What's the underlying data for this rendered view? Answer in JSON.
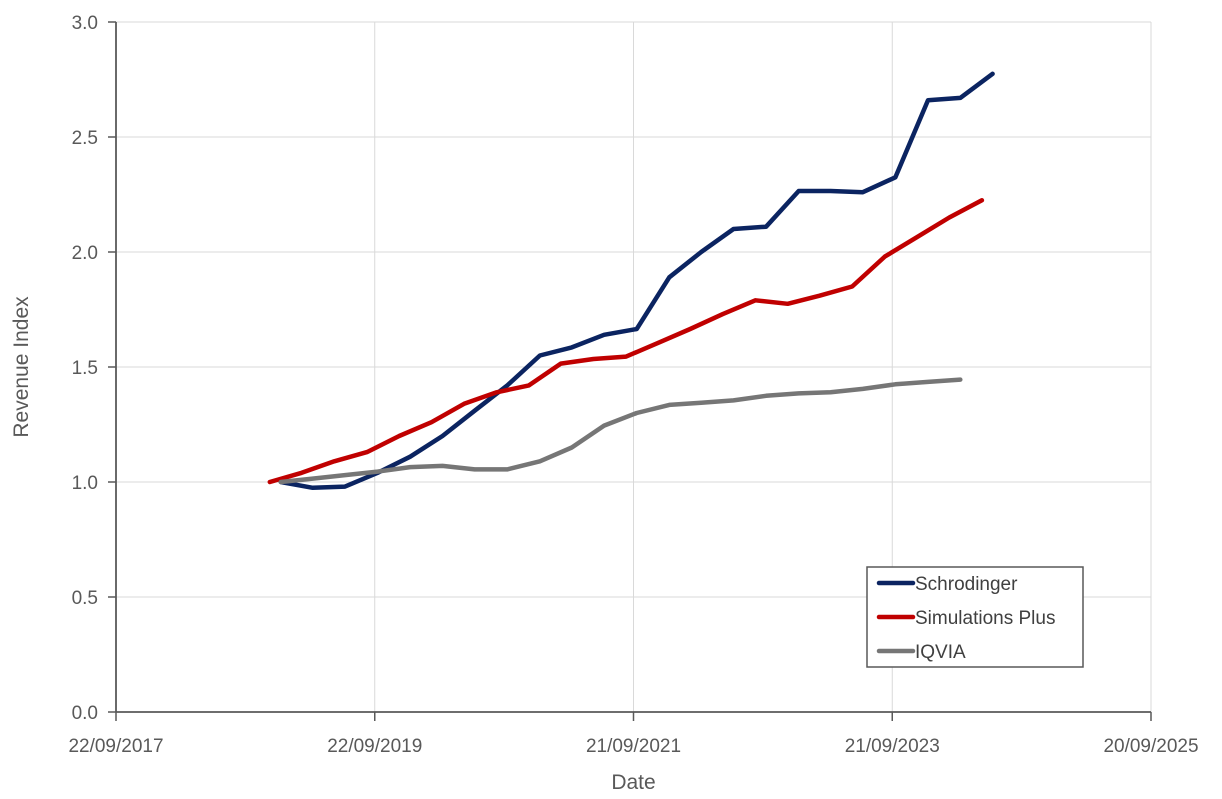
{
  "chart_data": {
    "type": "line",
    "title": "",
    "xlabel": "Date",
    "ylabel": "Revenue Index",
    "x_axis_type": "date",
    "xlim": [
      "2017-09-22",
      "2025-09-20"
    ],
    "ylim": [
      0.0,
      3.0
    ],
    "x_ticks": [
      "22/09/2017",
      "22/09/2019",
      "21/09/2021",
      "21/09/2023",
      "20/09/2025"
    ],
    "x_tick_dates": [
      "2017-09-22",
      "2019-09-22",
      "2021-09-21",
      "2023-09-21",
      "2025-09-20"
    ],
    "y_ticks": [
      "0.0",
      "0.5",
      "1.0",
      "1.5",
      "2.0",
      "2.5",
      "3.0"
    ],
    "y_tick_values": [
      0.0,
      0.5,
      1.0,
      1.5,
      2.0,
      2.5,
      3.0
    ],
    "grid": true,
    "legend_position": "bottom-right",
    "series": [
      {
        "name": "Schrodinger",
        "color": "#0b2461",
        "points": [
          [
            "2018-12-31",
            1.0
          ],
          [
            "2019-03-31",
            0.975
          ],
          [
            "2019-06-30",
            0.98
          ],
          [
            "2019-09-30",
            1.04
          ],
          [
            "2019-12-31",
            1.11
          ],
          [
            "2020-03-31",
            1.2
          ],
          [
            "2020-06-30",
            1.31
          ],
          [
            "2020-09-30",
            1.42
          ],
          [
            "2020-12-31",
            1.55
          ],
          [
            "2021-03-31",
            1.585
          ],
          [
            "2021-06-30",
            1.64
          ],
          [
            "2021-09-30",
            1.665
          ],
          [
            "2021-12-31",
            1.89
          ],
          [
            "2022-03-31",
            2.0
          ],
          [
            "2022-06-30",
            2.1
          ],
          [
            "2022-09-30",
            2.11
          ],
          [
            "2022-12-31",
            2.265
          ],
          [
            "2023-03-31",
            2.265
          ],
          [
            "2023-06-30",
            2.26
          ],
          [
            "2023-09-30",
            2.325
          ],
          [
            "2023-12-31",
            2.66
          ],
          [
            "2024-03-31",
            2.67
          ],
          [
            "2024-06-30",
            2.775
          ]
        ]
      },
      {
        "name": "Simulations Plus",
        "color": "#c00000",
        "points": [
          [
            "2018-11-30",
            1.0
          ],
          [
            "2019-02-28",
            1.04
          ],
          [
            "2019-05-31",
            1.09
          ],
          [
            "2019-08-31",
            1.13
          ],
          [
            "2019-11-30",
            1.2
          ],
          [
            "2020-02-29",
            1.26
          ],
          [
            "2020-05-31",
            1.34
          ],
          [
            "2020-08-31",
            1.39
          ],
          [
            "2020-11-30",
            1.42
          ],
          [
            "2021-02-28",
            1.515
          ],
          [
            "2021-05-31",
            1.535
          ],
          [
            "2021-08-31",
            1.545
          ],
          [
            "2021-11-30",
            1.605
          ],
          [
            "2022-02-28",
            1.665
          ],
          [
            "2022-05-31",
            1.73
          ],
          [
            "2022-08-31",
            1.79
          ],
          [
            "2022-11-30",
            1.775
          ],
          [
            "2023-02-28",
            1.81
          ],
          [
            "2023-05-31",
            1.85
          ],
          [
            "2023-08-31",
            1.98
          ],
          [
            "2023-11-30",
            2.065
          ],
          [
            "2024-02-29",
            2.15
          ],
          [
            "2024-05-31",
            2.225
          ]
        ]
      },
      {
        "name": "IQVIA",
        "color": "#767676",
        "points": [
          [
            "2018-12-31",
            1.0
          ],
          [
            "2019-03-31",
            1.015
          ],
          [
            "2019-06-30",
            1.03
          ],
          [
            "2019-09-30",
            1.045
          ],
          [
            "2019-12-31",
            1.065
          ],
          [
            "2020-03-31",
            1.07
          ],
          [
            "2020-06-30",
            1.055
          ],
          [
            "2020-09-30",
            1.055
          ],
          [
            "2020-12-31",
            1.09
          ],
          [
            "2021-03-31",
            1.15
          ],
          [
            "2021-06-30",
            1.245
          ],
          [
            "2021-09-30",
            1.3
          ],
          [
            "2021-12-31",
            1.335
          ],
          [
            "2022-03-31",
            1.345
          ],
          [
            "2022-06-30",
            1.355
          ],
          [
            "2022-09-30",
            1.375
          ],
          [
            "2022-12-31",
            1.385
          ],
          [
            "2023-03-31",
            1.39
          ],
          [
            "2023-06-30",
            1.405
          ],
          [
            "2023-09-30",
            1.425
          ],
          [
            "2023-12-31",
            1.435
          ],
          [
            "2024-03-31",
            1.445
          ]
        ]
      }
    ]
  }
}
